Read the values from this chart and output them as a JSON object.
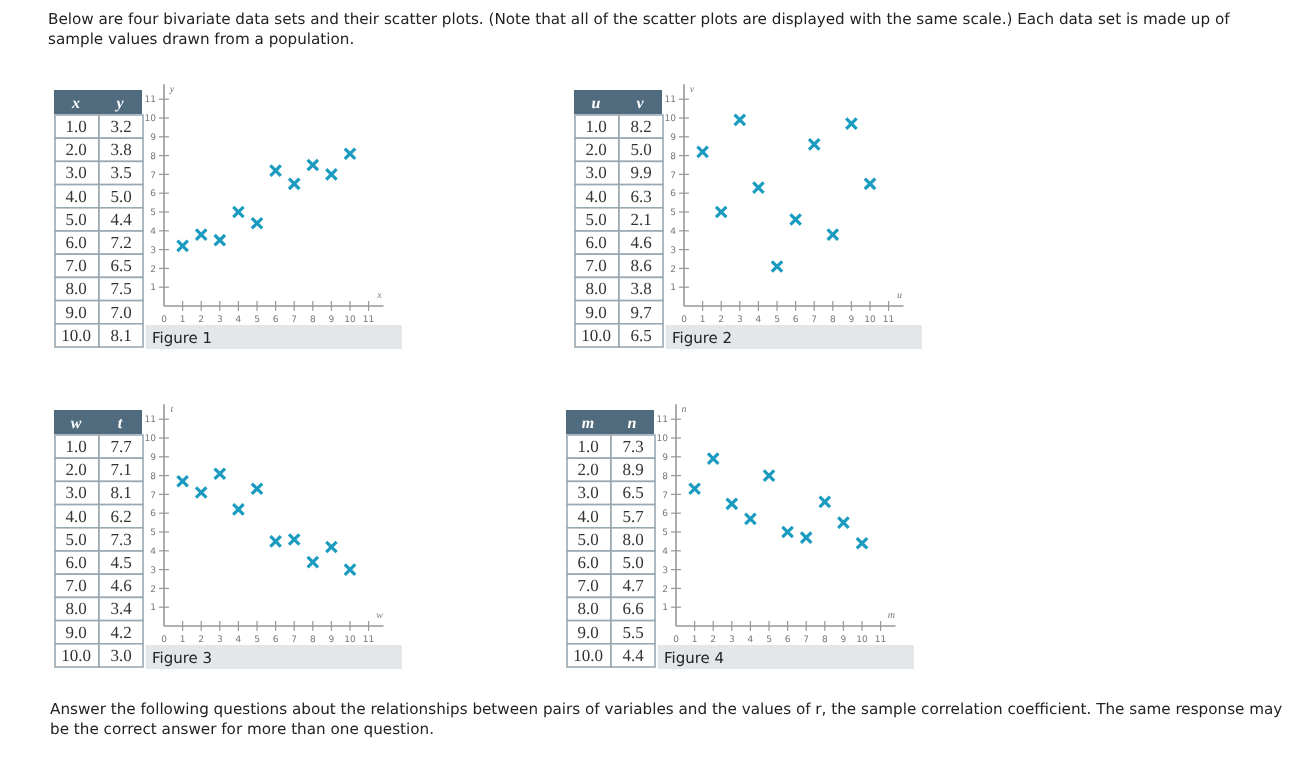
{
  "chart_data": [
    {
      "type": "scatter",
      "title": "Figure 1",
      "xlabel": "x",
      "ylabel": "y",
      "x": [
        1,
        2,
        3,
        4,
        5,
        6,
        7,
        8,
        9,
        10
      ],
      "values": [
        3.2,
        3.8,
        3.5,
        5.0,
        4.4,
        7.2,
        6.5,
        7.5,
        7.0,
        8.1
      ],
      "color": "#1a9bbf",
      "marker": "cross",
      "xlim": [
        0,
        11.8
      ],
      "ylim": [
        0,
        11.8
      ],
      "xticks": [
        0,
        1,
        2,
        3,
        4,
        5,
        6,
        7,
        8,
        9,
        10,
        11
      ],
      "yticks": [
        1,
        2,
        3,
        4,
        5,
        6,
        7,
        8,
        9,
        10,
        11
      ],
      "annotations": [
        "Below are four bivariate data sets and their scatter plots. (Note that all of the scatter plots are displayed with the same scale.) Each data set is made up of sample values drawn from a population.",
        "1.0",
        "3.2",
        "2.0",
        "3.8",
        "3.0",
        "3.5",
        "4.0",
        "5.0",
        "5.0",
        "4.4",
        "6.0",
        "7.2",
        "7.0",
        "6.5",
        "8.0",
        "7.5",
        "9.0",
        "7.0",
        "10.0",
        "8.1"
      ]
    },
    {
      "type": "scatter",
      "title": "Figure 2",
      "xlabel": "u",
      "ylabel": "v",
      "x": [
        1,
        2,
        3,
        4,
        5,
        6,
        7,
        8,
        9,
        10
      ],
      "values": [
        8.2,
        5.0,
        9.9,
        6.3,
        2.1,
        4.6,
        8.6,
        3.8,
        9.7,
        6.5
      ],
      "color": "#1a9bbf",
      "marker": "cross",
      "xlim": [
        0,
        11.8
      ],
      "ylim": [
        0,
        11.8
      ],
      "xticks": [
        0,
        1,
        2,
        3,
        4,
        5,
        6,
        7,
        8,
        9,
        10,
        11
      ],
      "yticks": [
        1,
        2,
        3,
        4,
        5,
        6,
        7,
        8,
        9,
        10,
        11
      ],
      "annotations": [
        "1.0",
        "8.2",
        "2.0",
        "5.0",
        "3.0",
        "9.9",
        "4.0",
        "6.3",
        "5.0",
        "2.1",
        "6.0",
        "4.6",
        "7.0",
        "8.6",
        "8.0",
        "3.8",
        "9.0",
        "9.7",
        "10.0",
        "6.5"
      ]
    },
    {
      "type": "scatter",
      "title": "Figure 3",
      "xlabel": "w",
      "ylabel": "t",
      "x": [
        1,
        2,
        3,
        4,
        5,
        6,
        7,
        8,
        9,
        10
      ],
      "values": [
        7.7,
        7.1,
        8.1,
        6.2,
        7.3,
        4.5,
        4.6,
        3.4,
        4.2,
        3.0
      ],
      "color": "#1a9bbf",
      "marker": "cross",
      "xlim": [
        0,
        11.8
      ],
      "ylim": [
        0,
        11.8
      ],
      "xticks": [
        0,
        1,
        2,
        3,
        4,
        5,
        6,
        7,
        8,
        9,
        10,
        11
      ],
      "yticks": [
        1,
        2,
        3,
        4,
        5,
        6,
        7,
        8,
        9,
        10,
        11
      ],
      "annotations": [
        "1.0",
        "7.7",
        "2.0",
        "7.1",
        "3.0",
        "8.1",
        "4.0",
        "6.2",
        "5.0",
        "7.3",
        "6.0",
        "4.5",
        "7.0",
        "4.6",
        "8.0",
        "3.4",
        "9.0",
        "4.2",
        "10.0",
        "3.0"
      ]
    },
    {
      "type": "scatter",
      "title": "Figure 4",
      "xlabel": "m",
      "ylabel": "n",
      "x": [
        1,
        2,
        3,
        4,
        5,
        6,
        7,
        8,
        9,
        10
      ],
      "values": [
        7.3,
        8.9,
        6.5,
        5.7,
        8.0,
        5.0,
        4.7,
        6.6,
        5.5,
        4.4
      ],
      "color": "#1a9bbf",
      "marker": "cross",
      "xlim": [
        0,
        11.8
      ],
      "ylim": [
        0,
        11.8
      ],
      "xticks": [
        0,
        1,
        2,
        3,
        4,
        5,
        6,
        7,
        8,
        9,
        10,
        11
      ],
      "yticks": [
        1,
        2,
        3,
        4,
        5,
        6,
        7,
        8,
        9,
        10,
        11
      ],
      "annotations": [
        "1.0",
        "7.3",
        "2.0",
        "8.9",
        "3.0",
        "6.5",
        "4.0",
        "5.7",
        "5.0",
        "8.0",
        "6.0",
        "5.0",
        "7.0",
        "4.7",
        "8.0",
        "6.6",
        "9.0",
        "5.5",
        "10.0",
        "4.4",
        "Answer the following questions about the relationships between pairs of variables and the values of r, the sample correlation coefficient. The same response may be the correct answer for more than one question."
      ]
    }
  ]
}
